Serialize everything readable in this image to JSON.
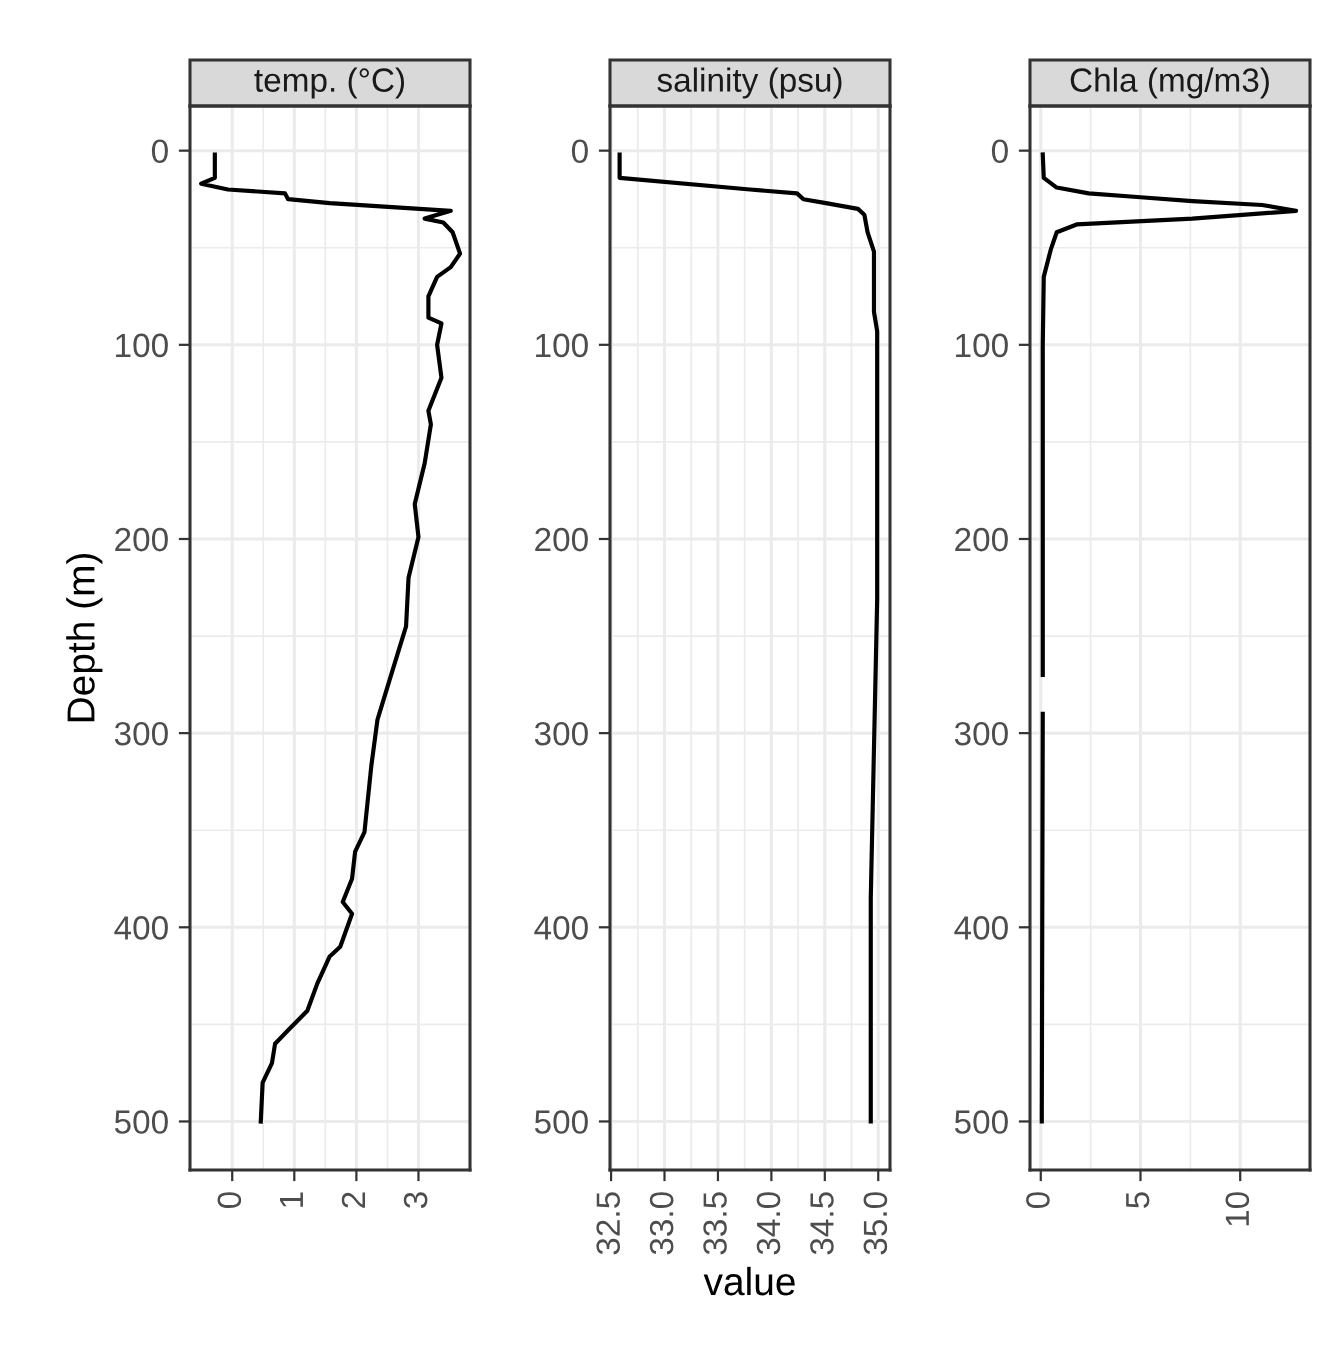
{
  "chart_data": [
    {
      "type": "line",
      "title": "temp. (°C)",
      "ylabel": "Depth (m)",
      "xlim": [
        -0.68,
        3.83
      ],
      "xticks": [
        0,
        1,
        2,
        3
      ],
      "ylim": [
        525,
        -23
      ],
      "yticks": [
        0,
        100,
        200,
        300,
        400,
        500
      ],
      "grid": true,
      "series": [
        {
          "color": "#000000",
          "x": [
            -0.28,
            -0.28,
            -0.5,
            -0.07,
            0.85,
            0.9,
            1.57,
            3.52,
            3.1,
            3.4,
            3.55,
            3.67,
            3.52,
            3.3,
            3.16,
            3.16,
            3.37,
            3.3,
            3.37,
            3.16,
            3.2,
            3.1,
            2.94,
            3.0,
            2.84,
            2.8,
            2.54,
            2.34,
            2.24,
            2.13,
            1.98,
            1.93,
            1.78,
            1.93,
            1.74,
            1.57,
            1.37,
            1.21,
            0.9,
            0.69,
            0.64,
            0.49,
            0.46
          ],
          "values": [
            2,
            14,
            17,
            20,
            22,
            25,
            27,
            31,
            35,
            37,
            42,
            53,
            60,
            65,
            75,
            86,
            89,
            100,
            117,
            134,
            141,
            161,
            182,
            199,
            220,
            245,
            272,
            293,
            317,
            351,
            361,
            375,
            387,
            393,
            410,
            415,
            429,
            443,
            453,
            460,
            470,
            480,
            500
          ]
        }
      ]
    },
    {
      "type": "line",
      "title": "salinity (psu)",
      "xlabel": "value",
      "xlim": [
        32.49,
        35.11
      ],
      "xticks": [
        {
          "value": 32.5,
          "label": "32.5"
        },
        {
          "value": 33.0,
          "label": "33.0"
        },
        {
          "value": 33.5,
          "label": "33.5"
        },
        {
          "value": 34.0,
          "label": "34.0"
        },
        {
          "value": 34.5,
          "label": "34.5"
        },
        {
          "value": 35.0,
          "label": "35.0"
        }
      ],
      "ylim": [
        525,
        -23
      ],
      "yticks": [
        0,
        100,
        200,
        300,
        400,
        500
      ],
      "grid": true,
      "series": [
        {
          "color": "#000000",
          "x": [
            32.58,
            32.58,
            33.8,
            34.24,
            34.3,
            34.51,
            34.81,
            34.87,
            34.9,
            34.96,
            34.96,
            34.99,
            34.99,
            34.99,
            34.93,
            34.93
          ],
          "values": [
            2,
            14,
            20,
            22,
            25,
            27,
            30,
            33,
            42,
            52,
            83,
            93,
            203,
            231,
            385,
            500
          ]
        }
      ]
    },
    {
      "type": "line",
      "title": "Chla (mg/m3)",
      "xlim": [
        -0.54,
        13.5
      ],
      "xticks": [
        0,
        5,
        10
      ],
      "ylim": [
        525,
        -23
      ],
      "yticks": [
        0,
        100,
        200,
        300,
        400,
        500
      ],
      "grid": true,
      "series": [
        {
          "color": "#000000",
          "x": [
            0.1,
            0.15,
            0.8,
            2.4,
            5.0,
            7.6,
            11.1,
            12.8,
            7.6,
            1.8,
            0.8,
            0.5,
            0.15,
            0.1,
            0.1,
            0.1,
            null,
            0.1,
            0.05
          ],
          "values": [
            2,
            14,
            19,
            22,
            24,
            26,
            28,
            31,
            35,
            38,
            42,
            51,
            65,
            100,
            200,
            270,
            null,
            290,
            500
          ]
        }
      ]
    }
  ]
}
